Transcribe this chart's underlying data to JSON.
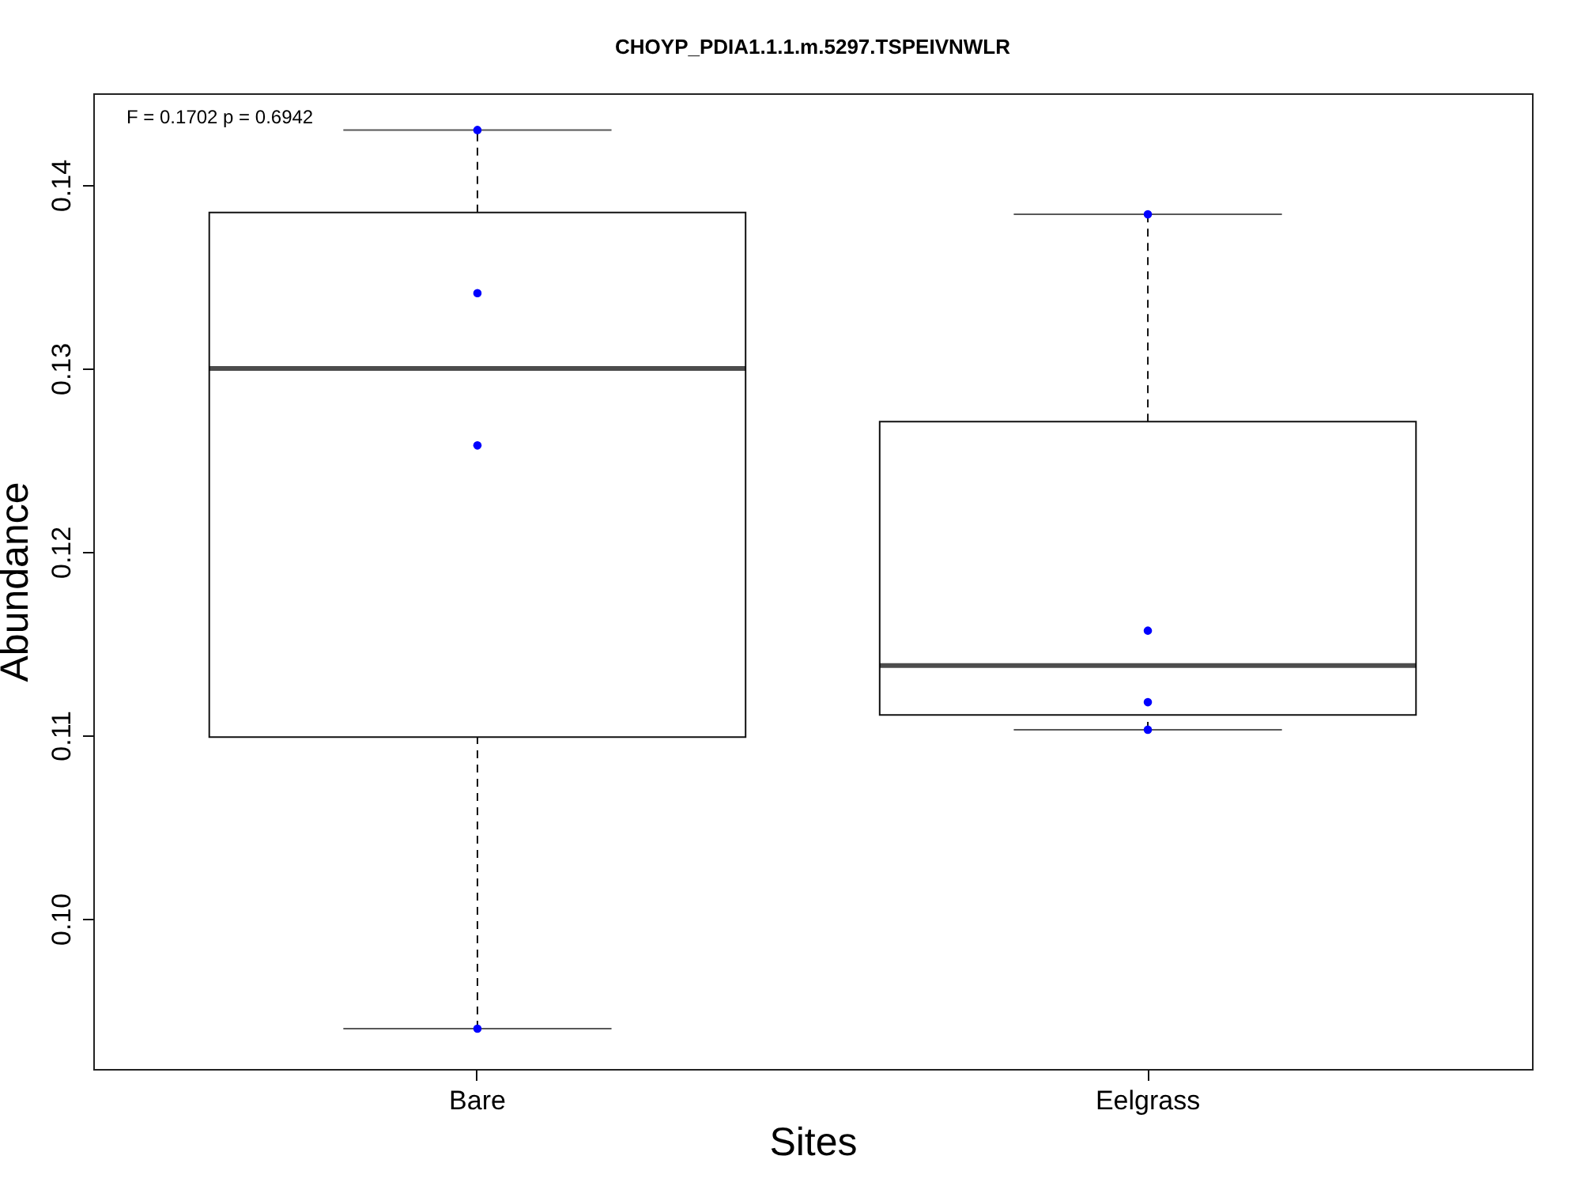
{
  "chart_data": {
    "type": "box",
    "title": "CHOYP_PDIA1.1.1.m.5297.TSPEIVNWLR",
    "xlabel": "Sites",
    "ylabel": "Abundance",
    "categories": [
      "Bare",
      "Eelgrass"
    ],
    "boxes": [
      {
        "low": 0.094,
        "q1": 0.1099,
        "median": 0.13,
        "q3": 0.1385,
        "high": 0.143
      },
      {
        "low": 0.1103,
        "q1": 0.1111,
        "median": 0.1138,
        "q3": 0.1271,
        "high": 0.1384
      }
    ],
    "series": [
      {
        "type": "scatter",
        "marker": "circle",
        "color": "#0000ff",
        "x": [
          "Bare",
          "Bare",
          "Bare",
          "Bare",
          "Eelgrass",
          "Eelgrass",
          "Eelgrass",
          "Eelgrass"
        ],
        "values": [
          0.143,
          0.1341,
          0.1258,
          0.094,
          0.1384,
          0.1157,
          0.1118,
          0.1103
        ]
      }
    ],
    "ylim": [
      0.0918,
      0.145
    ],
    "yticks": [
      {
        "value": 0.1,
        "label": "0.10"
      },
      0.11,
      0.12,
      0.13,
      0.14
    ],
    "annotations": [
      "F = 0.1702 p = 0.6942"
    ],
    "grid": false
  }
}
